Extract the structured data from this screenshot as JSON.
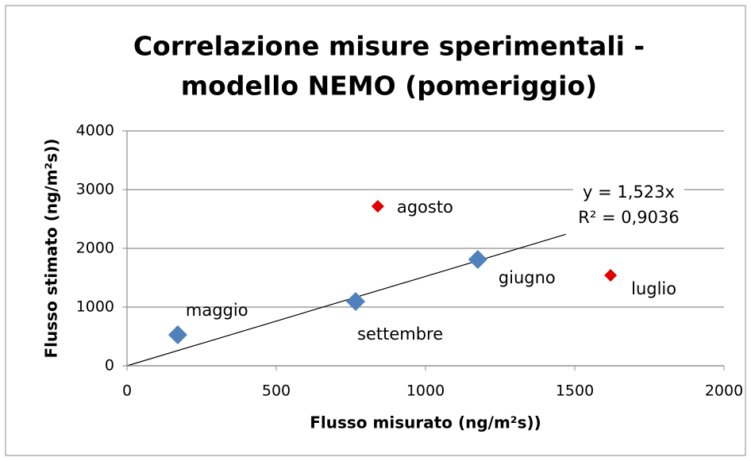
{
  "chart_data": {
    "type": "scatter",
    "title": [
      "Correlazione misure sperimentali -",
      "modello NEMO (pomeriggio)"
    ],
    "x_label": "Flusso misurato  (ng/m²s))",
    "y_label": "Flusso stimato (ng/m²s))",
    "xlim": [
      0,
      2000
    ],
    "xticks": [
      0,
      500,
      1000,
      1500,
      2000
    ],
    "ylim": [
      0,
      4000
    ],
    "yticks": [
      0,
      1000,
      2000,
      3000,
      4000
    ],
    "grid": true,
    "series": [
      {
        "color": "#4f81bd",
        "x": [
          170,
          766,
          1175
        ],
        "values": [
          527,
          1095,
          1810
        ],
        "labels": [
          "maggio",
          "settembre",
          "giugno"
        ]
      },
      {
        "color": "#e00000",
        "x": [
          840,
          1620
        ],
        "values": [
          2716,
          1540
        ],
        "labels": [
          "agosto",
          "luglio"
        ]
      }
    ],
    "trendline": {
      "slope": 1.523,
      "x_end": 1470,
      "equation": "y = 1,523x",
      "r2": "R² = 0,9036"
    }
  }
}
